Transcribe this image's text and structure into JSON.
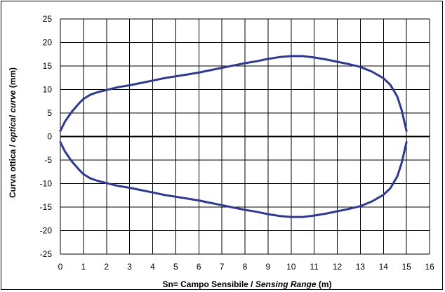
{
  "chart_data": {
    "type": "line",
    "xlabel_parts": [
      "Sn= Campo Sensibile / ",
      "Sensing Range",
      " (m)"
    ],
    "ylabel_parts": [
      "Curva ottica / ",
      "optical curve",
      " (mm)"
    ],
    "xlim": [
      0,
      16
    ],
    "ylim": [
      -25,
      25
    ],
    "xticks": [
      0,
      1,
      2,
      3,
      4,
      5,
      6,
      7,
      8,
      9,
      10,
      11,
      12,
      13,
      14,
      15,
      16
    ],
    "yticks": [
      25,
      20,
      15,
      10,
      5,
      0,
      -5,
      -10,
      -15,
      -20,
      -25
    ],
    "grid": true,
    "line_color": "#2e3a8f",
    "series": [
      {
        "x": [
          0,
          0.2,
          0.5,
          0.8,
          1.0,
          1.3,
          1.6,
          2.0,
          2.5,
          3.0,
          3.5,
          4.0,
          4.5,
          5.0,
          5.5,
          6.0,
          6.5,
          7.0,
          7.5,
          8.0,
          8.5,
          9.0,
          9.5,
          10.0,
          10.5,
          11.0,
          11.5,
          12.0,
          12.5,
          13.0,
          13.5,
          14.0,
          14.3,
          14.6,
          14.8,
          15.0
        ],
        "y": [
          1.2,
          3.2,
          5.3,
          7.0,
          8.0,
          8.9,
          9.4,
          9.9,
          10.5,
          10.9,
          11.4,
          11.9,
          12.4,
          12.8,
          13.2,
          13.6,
          14.1,
          14.6,
          15.1,
          15.6,
          16.0,
          16.5,
          16.9,
          17.1,
          17.1,
          16.8,
          16.4,
          15.9,
          15.4,
          14.8,
          13.8,
          12.4,
          11.0,
          8.5,
          5.5,
          1.2
        ]
      },
      {
        "x": [
          0,
          0.2,
          0.5,
          0.8,
          1.0,
          1.3,
          1.6,
          2.0,
          2.5,
          3.0,
          3.5,
          4.0,
          4.5,
          5.0,
          5.5,
          6.0,
          6.5,
          7.0,
          7.5,
          8.0,
          8.5,
          9.0,
          9.5,
          10.0,
          10.5,
          11.0,
          11.5,
          12.0,
          12.5,
          13.0,
          13.5,
          14.0,
          14.3,
          14.6,
          14.8,
          15.0
        ],
        "y": [
          -1.2,
          -3.2,
          -5.3,
          -7.0,
          -8.0,
          -8.9,
          -9.4,
          -9.9,
          -10.5,
          -10.9,
          -11.4,
          -11.9,
          -12.4,
          -12.8,
          -13.2,
          -13.6,
          -14.1,
          -14.6,
          -15.1,
          -15.6,
          -16.0,
          -16.5,
          -16.9,
          -17.1,
          -17.1,
          -16.8,
          -16.4,
          -15.9,
          -15.4,
          -14.8,
          -13.8,
          -12.4,
          -11.0,
          -8.5,
          -5.5,
          -1.2
        ]
      }
    ]
  }
}
